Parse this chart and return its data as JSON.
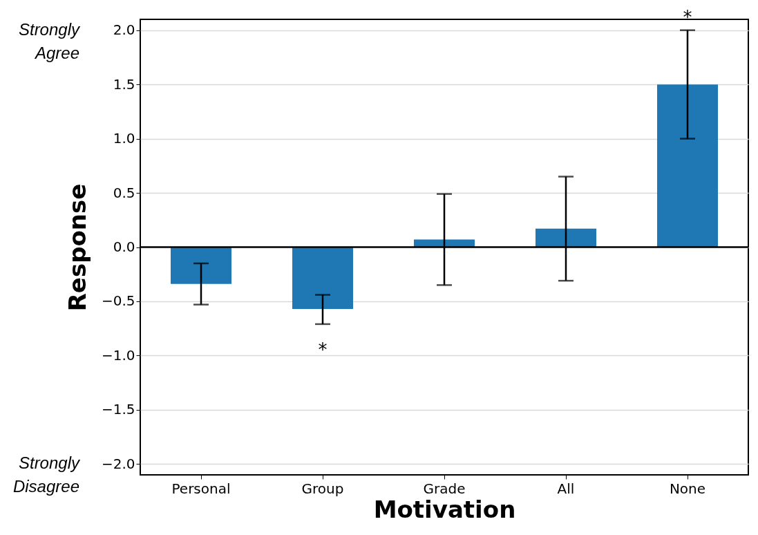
{
  "chart_data": {
    "type": "bar",
    "xlabel": "Motivation",
    "ylabel": "Response",
    "categories": [
      "Personal",
      "Group",
      "Grade",
      "All",
      "None"
    ],
    "values": [
      -0.34,
      -0.57,
      0.07,
      0.17,
      1.5
    ],
    "errors": [
      [
        -0.53,
        -0.15
      ],
      [
        -0.71,
        -0.44
      ],
      [
        -0.35,
        0.49
      ],
      [
        -0.31,
        0.65
      ],
      [
        1.0,
        2.0
      ]
    ],
    "color": "#1f77b4",
    "ylim": [
      -2.1,
      2.1
    ],
    "yticks": [
      {
        "value": -2,
        "label": "−2.0"
      },
      {
        "value": -1.5,
        "label": "−1.5"
      },
      {
        "value": -1,
        "label": "−1.0"
      },
      {
        "value": -0.5,
        "label": "−0.5"
      },
      {
        "value": 0,
        "label": "0.0"
      },
      0.5,
      {
        "value": 1,
        "label": "1.0"
      },
      1.5,
      {
        "value": 2,
        "label": "2.0"
      }
    ],
    "grid": "y",
    "ref_lines": [
      {
        "axis": "y",
        "value": 0,
        "color": "#000000",
        "line_style": "solid"
      }
    ],
    "annotations": [
      "*",
      "*",
      "Strongly Agree",
      "Strongly Disagree"
    ]
  }
}
